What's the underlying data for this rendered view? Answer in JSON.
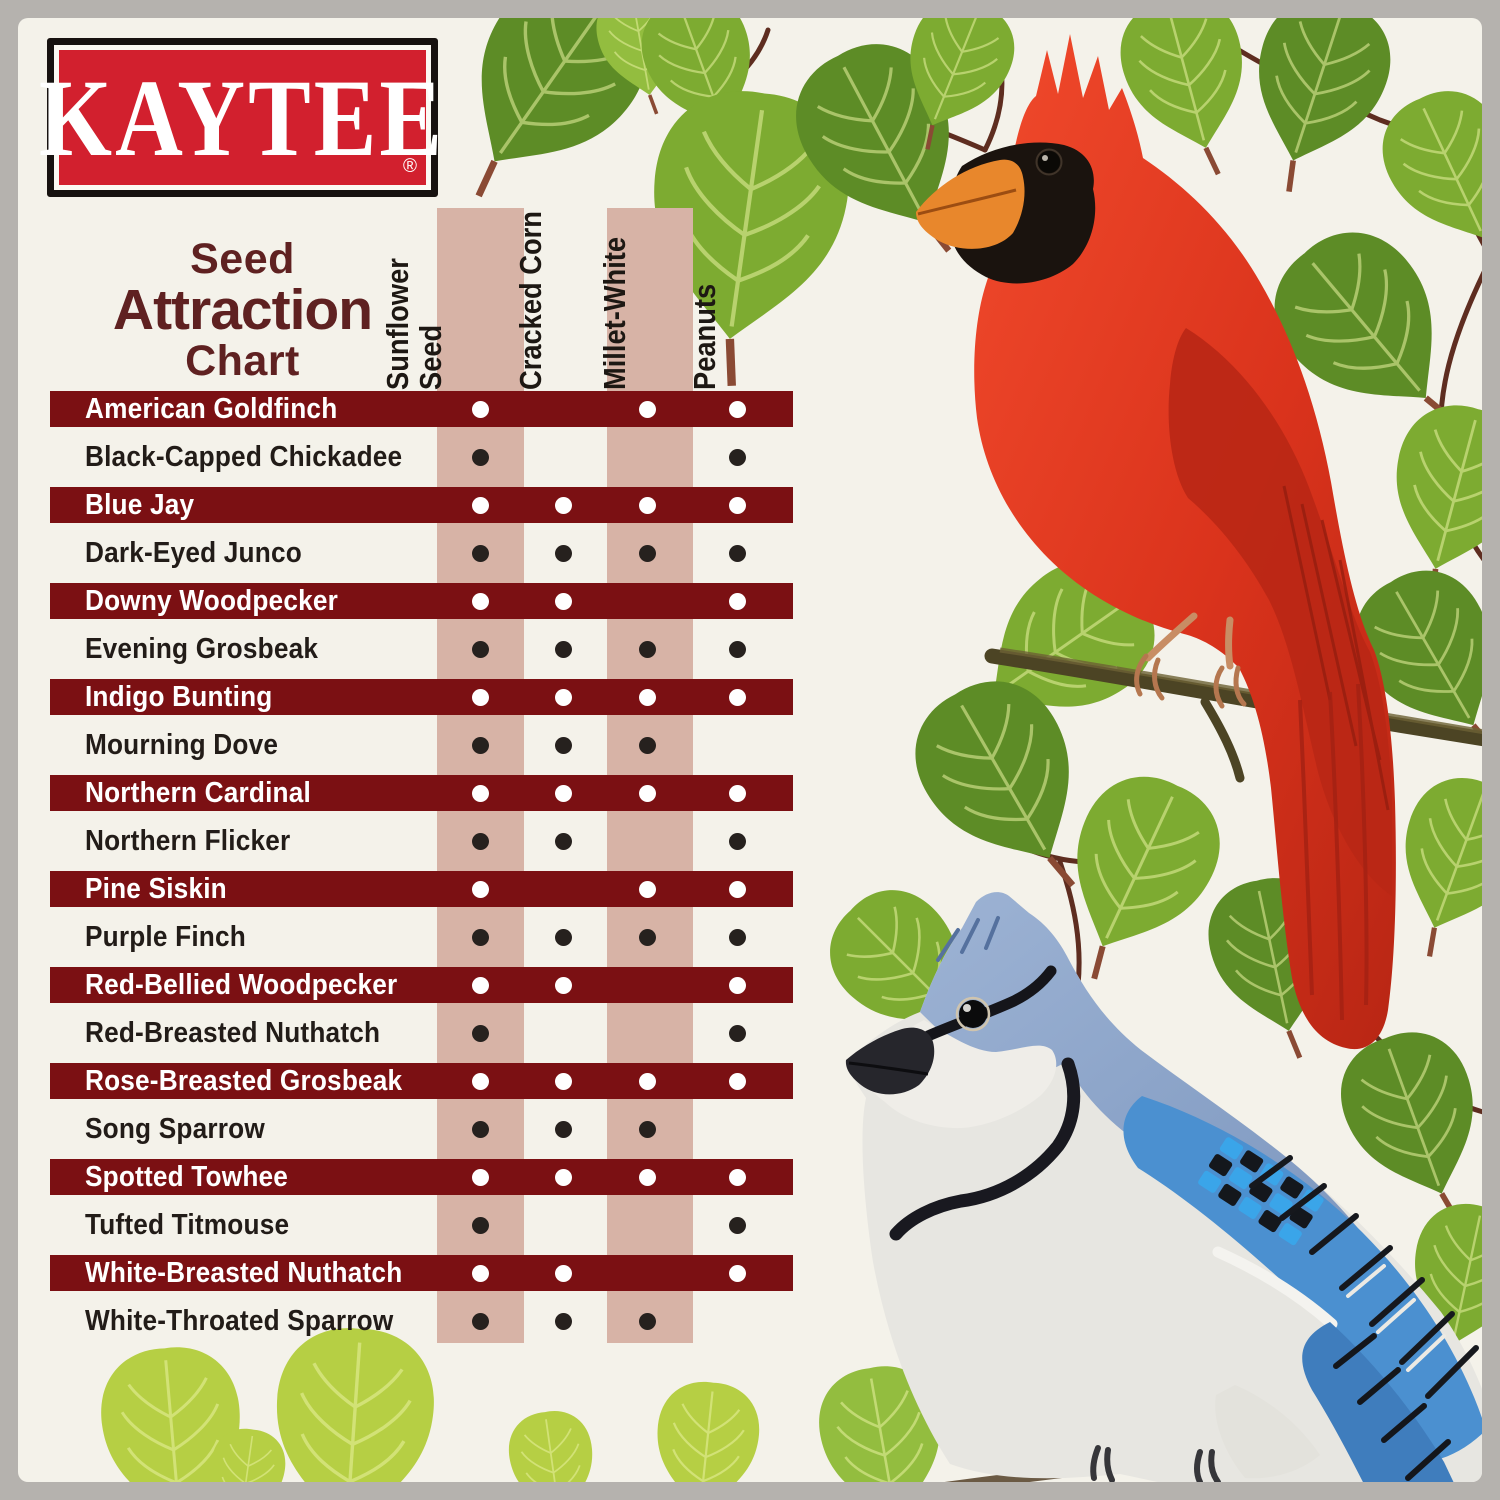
{
  "brand": {
    "name": "KAYTEE",
    "registered_mark": "®"
  },
  "title": {
    "line1": "Seed",
    "line2": "Attraction",
    "line3": "Chart"
  },
  "chart_data": {
    "type": "table",
    "title": "Seed Attraction Chart",
    "legend_note": "dot = seed attracts this bird",
    "columns": [
      {
        "label": "Sunflower Seed",
        "lines": [
          "Sunflower",
          "Seed"
        ],
        "highlighted": true
      },
      {
        "label": "Cracked Corn",
        "lines": [
          "Cracked Corn"
        ],
        "highlighted": false
      },
      {
        "label": "Millet-White",
        "lines": [
          "Millet-White"
        ],
        "highlighted": true
      },
      {
        "label": "Peanuts",
        "lines": [
          "Peanuts"
        ],
        "highlighted": false
      }
    ],
    "rows": [
      {
        "bird": "American Goldfinch",
        "highlighted": true,
        "attracts": [
          1,
          0,
          1,
          1
        ]
      },
      {
        "bird": "Black-Capped Chickadee",
        "highlighted": false,
        "attracts": [
          1,
          0,
          0,
          1
        ]
      },
      {
        "bird": "Blue Jay",
        "highlighted": true,
        "attracts": [
          1,
          1,
          1,
          1
        ]
      },
      {
        "bird": "Dark-Eyed Junco",
        "highlighted": false,
        "attracts": [
          1,
          1,
          1,
          1
        ]
      },
      {
        "bird": "Downy Woodpecker",
        "highlighted": true,
        "attracts": [
          1,
          1,
          0,
          1
        ]
      },
      {
        "bird": "Evening Grosbeak",
        "highlighted": false,
        "attracts": [
          1,
          1,
          1,
          1
        ]
      },
      {
        "bird": "Indigo Bunting",
        "highlighted": true,
        "attracts": [
          1,
          1,
          1,
          1
        ]
      },
      {
        "bird": "Mourning Dove",
        "highlighted": false,
        "attracts": [
          1,
          1,
          1,
          0
        ]
      },
      {
        "bird": "Northern Cardinal",
        "highlighted": true,
        "attracts": [
          1,
          1,
          1,
          1
        ]
      },
      {
        "bird": "Northern Flicker",
        "highlighted": false,
        "attracts": [
          1,
          1,
          0,
          1
        ]
      },
      {
        "bird": "Pine Siskin",
        "highlighted": true,
        "attracts": [
          1,
          0,
          1,
          1
        ]
      },
      {
        "bird": "Purple Finch",
        "highlighted": false,
        "attracts": [
          1,
          1,
          1,
          1
        ]
      },
      {
        "bird": "Red-Bellied Woodpecker",
        "highlighted": true,
        "attracts": [
          1,
          1,
          0,
          1
        ]
      },
      {
        "bird": "Red-Breasted Nuthatch",
        "highlighted": false,
        "attracts": [
          1,
          0,
          0,
          1
        ]
      },
      {
        "bird": "Rose-Breasted Grosbeak",
        "highlighted": true,
        "attracts": [
          1,
          1,
          1,
          1
        ]
      },
      {
        "bird": "Song Sparrow",
        "highlighted": false,
        "attracts": [
          1,
          1,
          1,
          0
        ]
      },
      {
        "bird": "Spotted Towhee",
        "highlighted": true,
        "attracts": [
          1,
          1,
          1,
          1
        ]
      },
      {
        "bird": "Tufted Titmouse",
        "highlighted": false,
        "attracts": [
          1,
          0,
          0,
          1
        ]
      },
      {
        "bird": "White-Breasted Nuthatch",
        "highlighted": true,
        "attracts": [
          1,
          1,
          0,
          1
        ]
      },
      {
        "bird": "White-Throated Sparrow",
        "highlighted": false,
        "attracts": [
          1,
          1,
          1,
          0
        ]
      }
    ]
  },
  "illustrations": {
    "cardinal": "Northern Cardinal perched on a branch",
    "blue_jay": "Blue Jay",
    "background": "Green aspen leaves on thin branches"
  },
  "colors": {
    "frame_gray": "#b5b2ae",
    "background_cream": "#f4f2ea",
    "bar_maroon": "#7b1013",
    "stripe_tan": "#d7b3a6",
    "title_maroon": "#5f2121",
    "brand_red": "#d2202e",
    "dot_on_bar": "#ffffff",
    "dot_on_light": "#26211e",
    "row_text_dark": "#221c18"
  }
}
